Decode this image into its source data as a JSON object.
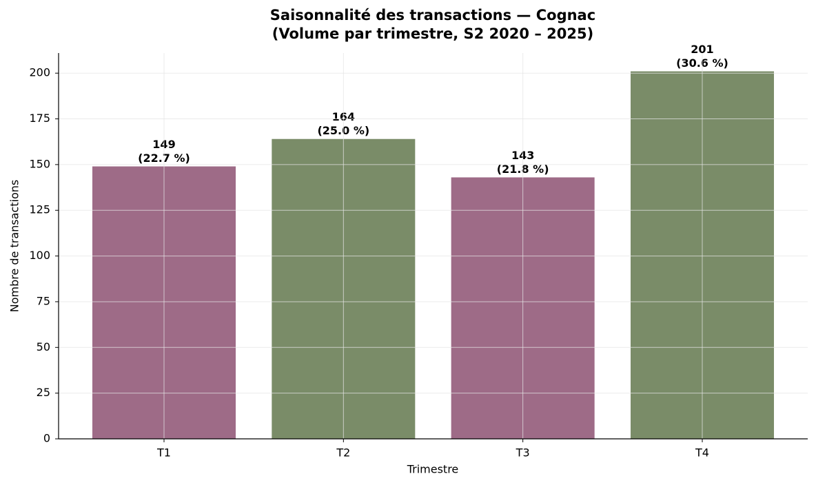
{
  "chart_data": {
    "type": "bar",
    "title": [
      "Saisonnalité des transactions — Cognac",
      "(Volume par trimestre, S2 2020 – 2025)"
    ],
    "x_label": "Trimestre",
    "y_label": "Nombre de transactions",
    "categories": [
      "T1",
      "T2",
      "T3",
      "T4"
    ],
    "values": [
      149,
      164,
      143,
      201
    ],
    "shares": [
      22.7,
      25.0,
      21.8,
      30.6
    ],
    "share_labels": [
      "(22.7 %)",
      "(25.0 %)",
      "(21.8 %)",
      "(30.6 %)"
    ],
    "colors": [
      "#9e6b87",
      "#7a8c68",
      "#9e6b87",
      "#7a8c68"
    ],
    "ylim": [
      0,
      211
    ],
    "yticks": [
      0,
      25,
      50,
      75,
      100,
      125,
      150,
      175,
      200
    ],
    "grid": true
  }
}
